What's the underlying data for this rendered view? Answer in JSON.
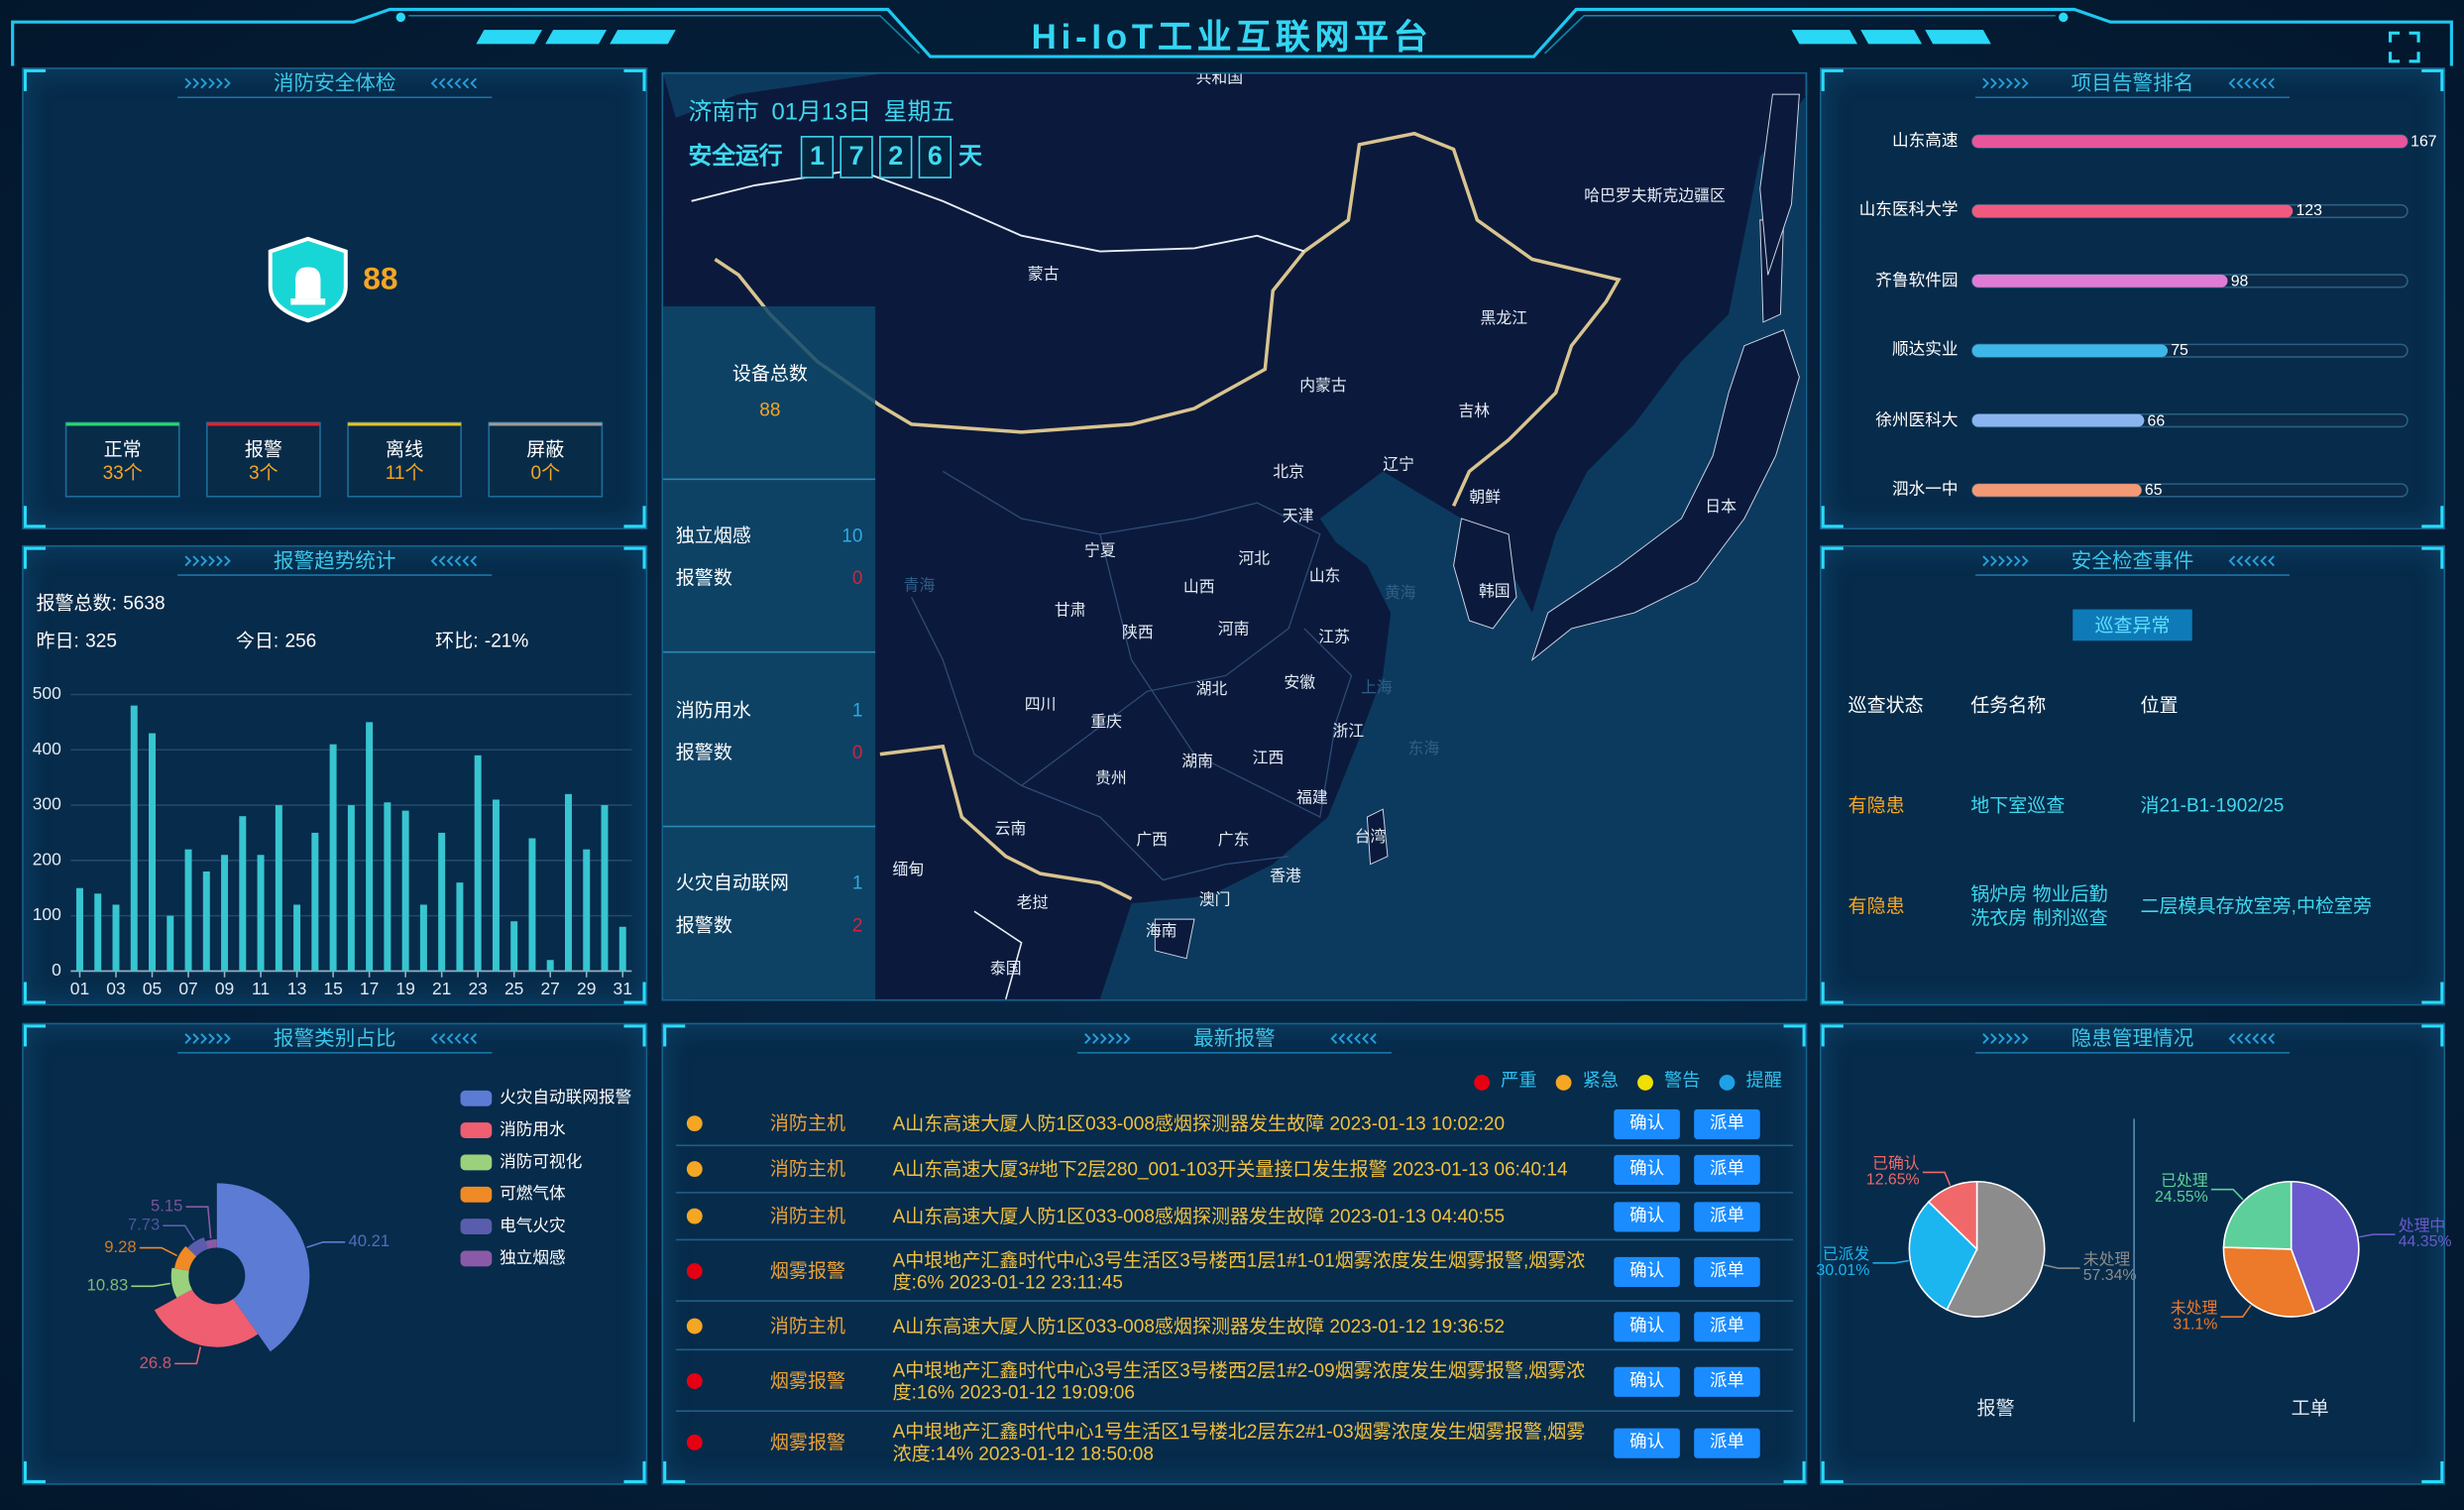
{
  "header": {
    "title": "Hi-IoT工业互联网平台"
  },
  "fire_check": {
    "title": "消防安全体检",
    "score": 88,
    "statuses": [
      {
        "label": "正常",
        "value": "33个",
        "color": "#2bd46a"
      },
      {
        "label": "报警",
        "value": "3个",
        "color": "#e0222f"
      },
      {
        "label": "离线",
        "value": "11个",
        "color": "#e6c026"
      },
      {
        "label": "屏蔽",
        "value": "0个",
        "color": "#9a9a9a"
      }
    ]
  },
  "alarm_trend": {
    "title": "报警趋势统计",
    "total_label": "报警总数:",
    "total": 5638,
    "yesterday_label": "昨日:",
    "yesterday": 325,
    "today_label": "今日:",
    "today": 256,
    "ratio_label": "环比:",
    "ratio": "-21%"
  },
  "alarm_category": {
    "title": "报警类别占比"
  },
  "ranking": {
    "title": "项目告警排名"
  },
  "hazard": {
    "title": "隐患管理情况"
  },
  "map": {
    "location": "济南市",
    "date": "01月13日",
    "weekday": "星期五",
    "safe_label": "安全运行",
    "safe_digits": [
      "1",
      "7",
      "2",
      "6"
    ],
    "safe_unit": "天",
    "device_total_label": "设备总数",
    "device_total": 88,
    "devices": [
      {
        "name": "独立烟感",
        "count": 10,
        "alarm_label": "报警数",
        "alarms": 0
      },
      {
        "name": "消防用水",
        "count": 1,
        "alarm_label": "报警数",
        "alarms": 0
      },
      {
        "name": "火灾自动联网",
        "count": 1,
        "alarm_label": "报警数",
        "alarms": 2
      }
    ],
    "labels": [
      "共和国",
      "蒙古",
      "哈巴罗夫斯克边疆区",
      "黑龙江",
      "内蒙古",
      "吉林",
      "辽宁",
      "北京",
      "天津",
      "朝鲜",
      "日本",
      "河北",
      "宁夏",
      "山西",
      "山东",
      "韩国",
      "青海",
      "甘肃",
      "陕西",
      "河南",
      "江苏",
      "黄海",
      "安徽",
      "上海",
      "湖北",
      "四川",
      "重庆",
      "浙江",
      "东海",
      "湖南",
      "江西",
      "贵州",
      "福建",
      "台湾",
      "云南",
      "广西",
      "广东",
      "缅甸",
      "香港",
      "老挝",
      "澳门",
      "海南",
      "泰国"
    ]
  },
  "latest_alarms": {
    "title": "最新报警",
    "levels": [
      {
        "name": "严重",
        "color": "#e60012"
      },
      {
        "name": "紧急",
        "color": "#f5a623"
      },
      {
        "name": "警告",
        "color": "#f0e000"
      },
      {
        "name": "提醒",
        "color": "#1ea0e6"
      }
    ],
    "actions": [
      "确认",
      "派单"
    ],
    "rows": [
      {
        "level": "紧急",
        "type": "消防主机",
        "text": "A山东高速大厦人防1区033-008感烟探测器发生故障 2023-01-13 10:02:20"
      },
      {
        "level": "紧急",
        "type": "消防主机",
        "text": "A山东高速大厦3#地下2层280_001-103开关量接口发生报警 2023-01-13 06:40:14"
      },
      {
        "level": "紧急",
        "type": "消防主机",
        "text": "A山东高速大厦人防1区033-008感烟探测器发生故障 2023-01-13 04:40:55"
      },
      {
        "level": "严重",
        "type": "烟雾报警",
        "text": "A中垠地产汇鑫时代中心3号生活区3号楼西1层1#1-01烟雾浓度发生烟雾报警,烟雾浓度:6% 2023-01-12 23:11:45"
      },
      {
        "level": "紧急",
        "type": "消防主机",
        "text": "A山东高速大厦人防1区033-008感烟探测器发生故障 2023-01-12 19:36:52"
      },
      {
        "level": "严重",
        "type": "烟雾报警",
        "text": "A中垠地产汇鑫时代中心3号生活区3号楼西2层1#2-09烟雾浓度发生烟雾报警,烟雾浓度:16% 2023-01-12 19:09:06"
      },
      {
        "level": "严重",
        "type": "烟雾报警",
        "text": "A中垠地产汇鑫时代中心1号生活区1号楼北2层东2#1-03烟雾浓度发生烟雾报警,烟雾浓度:14% 2023-01-12 18:50:08"
      }
    ]
  },
  "inspection": {
    "title": "安全检查事件",
    "button": "巡查异常",
    "columns": [
      "巡查状态",
      "任务名称",
      "位置"
    ],
    "rows": [
      [
        "有隐患",
        "地下室巡查",
        "消21-B1-1902/25"
      ],
      [
        "有隐患",
        "锅炉房 物业后勤 洗衣房 制剂巡查",
        "二层模具存放室旁,中检室旁"
      ]
    ]
  },
  "chart_data": [
    {
      "type": "bar",
      "categories": [
        "01",
        null,
        "03",
        null,
        "05",
        null,
        "07",
        null,
        "09",
        null,
        "11",
        null,
        "13",
        null,
        "15",
        null,
        "17",
        null,
        "19",
        null,
        "21",
        null,
        "23",
        null,
        "25",
        null,
        "27",
        null,
        "29",
        null,
        "31"
      ],
      "values": [
        150,
        140,
        120,
        480,
        430,
        100,
        220,
        180,
        210,
        280,
        210,
        300,
        120,
        250,
        410,
        300,
        450,
        305,
        290,
        120,
        250,
        160,
        390,
        310,
        90,
        240,
        20,
        320,
        220,
        300,
        80
      ],
      "color": "#37c5d0",
      "ylim": [
        0,
        500
      ],
      "yticks": [
        0,
        100,
        200,
        300,
        400,
        500
      ],
      "grid": true
    },
    {
      "type": "bar",
      "horizontal": true,
      "categories": [
        "山东高速",
        "山东医科大学",
        "齐鲁软件园",
        "顺达实业",
        "徐州医科大",
        "泗水一中"
      ],
      "values": [
        167,
        123,
        98,
        75,
        66,
        65
      ],
      "colors": [
        "#e8559b",
        "#f05a7e",
        "#e07bd4",
        "#3fb6e8",
        "#8ab4f0",
        "#f39a74"
      ],
      "xlim": [
        0,
        167
      ]
    },
    {
      "type": "pie",
      "rose": true,
      "categories": [
        "火灾自动联网报警",
        "消防用水",
        "消防可视化",
        "可燃气体",
        "电气火灾",
        "独立烟感"
      ],
      "values": [
        40.21,
        26.8,
        10.83,
        9.28,
        7.73,
        5.15
      ],
      "colors": [
        "#5b7bd5",
        "#ef5e71",
        "#9bd17c",
        "#f08a24",
        "#5a5dae",
        "#8a5aa8"
      ],
      "legend": "right"
    },
    {
      "type": "pie",
      "title": "报警",
      "categories": [
        "未处理",
        "已派发",
        "已确认"
      ],
      "values": [
        57.34,
        30.01,
        12.65
      ],
      "value_labels": [
        "57.34%",
        "30.01%",
        "12.65%"
      ],
      "colors": [
        "#8c8c8c",
        "#1bb5f0",
        "#f0686a"
      ]
    },
    {
      "type": "pie",
      "title": "工单",
      "categories": [
        "处理中",
        "未处理",
        "已处理"
      ],
      "values": [
        44.35,
        31.1,
        24.55
      ],
      "value_labels": [
        "44.35%",
        "31.1%",
        "24.55%"
      ],
      "colors": [
        "#6a5acd",
        "#ec7a2a",
        "#5ccf9a"
      ]
    }
  ]
}
